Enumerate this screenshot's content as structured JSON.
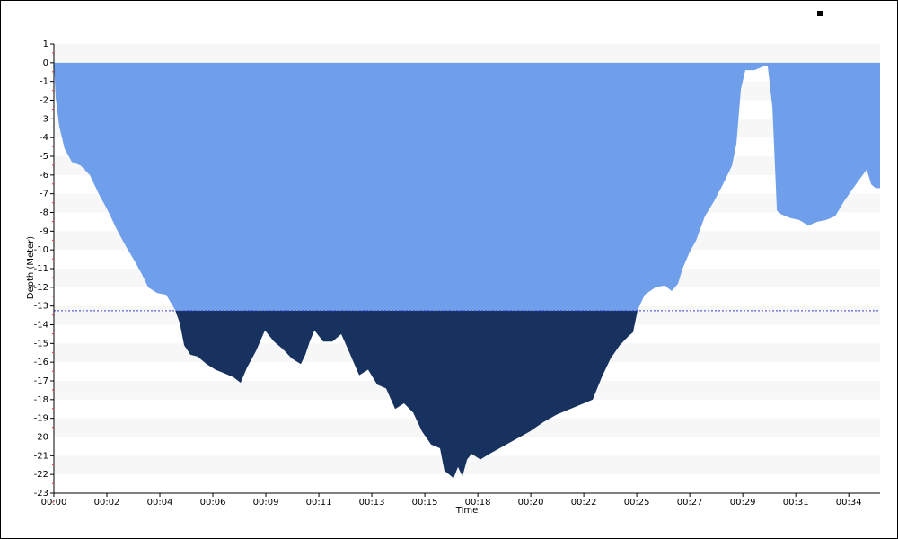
{
  "chart_data": {
    "type": "area",
    "ylabel": "Depth (Meter)",
    "xlabel": "Time",
    "x": [
      0.0,
      0.08,
      0.23,
      0.46,
      0.77,
      1.15,
      1.54,
      1.92,
      2.31,
      2.69,
      3.08,
      3.46,
      3.77,
      4.04,
      4.42,
      4.81,
      5.19,
      5.39,
      5.58,
      5.85,
      6.16,
      6.54,
      6.92,
      7.31,
      7.69,
      8.0,
      8.27,
      8.66,
      9.04,
      9.43,
      9.81,
      10.19,
      10.58,
      10.77,
      10.96,
      11.16,
      11.54,
      11.93,
      12.31,
      12.7,
      13.08,
      13.46,
      13.85,
      14.23,
      14.62,
      15.0,
      15.39,
      15.77,
      16.16,
      16.54,
      16.73,
      16.93,
      17.12,
      17.31,
      17.5,
      17.7,
      17.89,
      18.27,
      18.66,
      19.24,
      19.81,
      20.39,
      20.97,
      21.54,
      22.12,
      22.7,
      23.08,
      23.47,
      23.85,
      24.24,
      24.62,
      24.81,
      25.01,
      25.31,
      25.77,
      26.16,
      26.47,
      26.74,
      26.93,
      27.24,
      27.51,
      27.89,
      28.28,
      28.66,
      29.05,
      29.24,
      29.43,
      29.62,
      30.01,
      30.39,
      30.58,
      30.78,
      30.97,
      31.16,
      31.55,
      31.93,
      32.31,
      32.7,
      33.08,
      33.47,
      33.85,
      34.24,
      34.82,
      35.01,
      35.2,
      35.39
    ],
    "values": [
      0.0,
      -1.9,
      -3.4,
      -4.6,
      -5.3,
      -5.5,
      -6.0,
      -7.0,
      -7.9,
      -8.9,
      -9.8,
      -10.6,
      -11.3,
      -12.0,
      -12.3,
      -12.4,
      -13.2,
      -13.9,
      -15.1,
      -15.6,
      -15.7,
      -16.1,
      -16.4,
      -16.6,
      -16.8,
      -17.1,
      -16.3,
      -15.4,
      -14.3,
      -14.9,
      -15.3,
      -15.8,
      -16.1,
      -15.6,
      -14.9,
      -14.3,
      -14.9,
      -14.9,
      -14.5,
      -15.6,
      -16.7,
      -16.4,
      -17.2,
      -17.4,
      -18.5,
      -18.2,
      -18.7,
      -19.7,
      -20.4,
      -20.6,
      -21.8,
      -22.0,
      -22.2,
      -21.6,
      -22.1,
      -21.2,
      -20.9,
      -21.2,
      -20.9,
      -20.5,
      -20.1,
      -19.7,
      -19.2,
      -18.8,
      -18.5,
      -18.2,
      -18.0,
      -16.8,
      -15.8,
      -15.1,
      -14.6,
      -14.4,
      -13.2,
      -12.4,
      -12.0,
      -11.9,
      -12.2,
      -11.8,
      -11.0,
      -10.1,
      -9.5,
      -8.2,
      -7.4,
      -6.5,
      -5.5,
      -4.3,
      -1.4,
      -0.4,
      -0.4,
      -0.2,
      -0.2,
      -2.4,
      -7.9,
      -8.1,
      -8.3,
      -8.4,
      -8.7,
      -8.5,
      -8.4,
      -8.2,
      -7.4,
      -6.7,
      -5.7,
      -6.5,
      -6.7,
      -6.7
    ],
    "threshold": -13.25,
    "color": "#6f9feb",
    "below_color": "#17325f",
    "threshold_color": "#3a3ad0",
    "xlim": [
      0,
      35.39
    ],
    "ylim": [
      -23,
      1
    ],
    "yticks": [
      1,
      0,
      -1,
      -2,
      -3,
      -4,
      -5,
      -6,
      -7,
      -8,
      -9,
      -10,
      -11,
      -12,
      -13,
      -14,
      -15,
      -16,
      -17,
      -18,
      -19,
      -20,
      -21,
      -22,
      -23
    ],
    "xticks": [
      {
        "value": 0,
        "label": "00:00"
      },
      {
        "value": 2.27,
        "label": "00:02"
      },
      {
        "value": 4.54,
        "label": "00:04"
      },
      {
        "value": 6.81,
        "label": "00:06"
      },
      {
        "value": 9.08,
        "label": "00:09"
      },
      {
        "value": 11.35,
        "label": "00:11"
      },
      {
        "value": 13.62,
        "label": "00:13"
      },
      {
        "value": 15.89,
        "label": "00:15"
      },
      {
        "value": 18.16,
        "label": "00:18"
      },
      {
        "value": 20.43,
        "label": "00:20"
      },
      {
        "value": 22.7,
        "label": "00:22"
      },
      {
        "value": 24.97,
        "label": "00:25"
      },
      {
        "value": 27.24,
        "label": "00:27"
      },
      {
        "value": 29.51,
        "label": "00:29"
      },
      {
        "value": 31.78,
        "label": "00:31"
      },
      {
        "value": 34.05,
        "label": "00:34"
      }
    ],
    "grid": "bands"
  }
}
